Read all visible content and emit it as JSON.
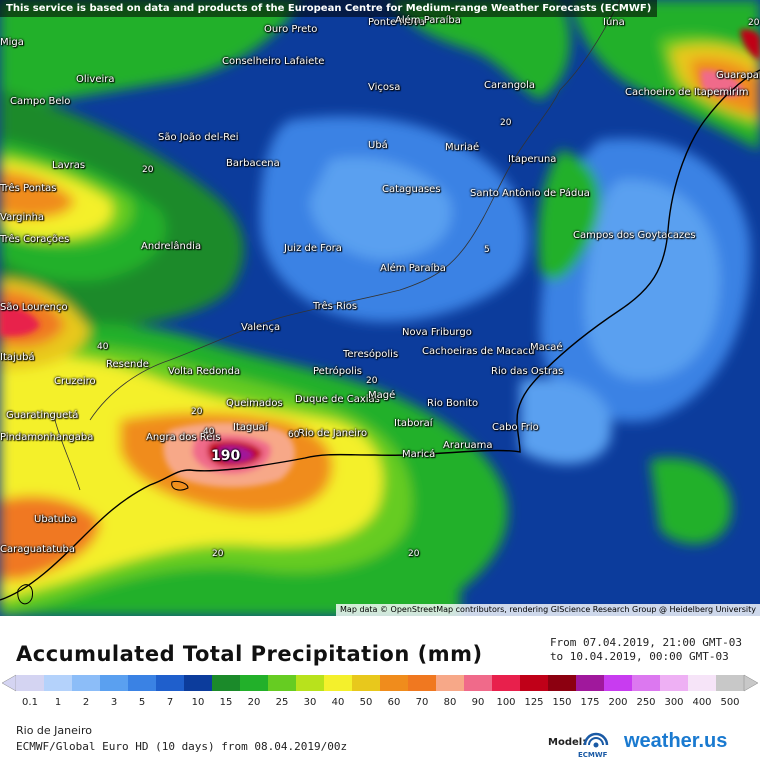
{
  "notice": "This service is based on data and products of the European Centre for Medium-range Weather Forecasts (ECMWF)",
  "attribution": "Map data © OpenStreetMap contributors, rendering GIScience Research Group @ Heidelberg University",
  "title": "Accumulated Total Precipitation (mm)",
  "period": {
    "from": "From 07.04.2019, 21:00 GMT-03",
    "to": "to 10.04.2019, 00:00 GMT-03"
  },
  "location": "Rio de Janeiro",
  "model": "ECMWF/Global Euro HD (10 days) from 08.04.2019/00z",
  "model_label": "Model:",
  "model_logo_text": "ECMWF",
  "brand": "weather.us",
  "max_value_label": "190",
  "contour_labels": [
    "20",
    "20",
    "40",
    "40",
    "20",
    "20",
    "60",
    "20",
    "5",
    "20",
    "20"
  ],
  "scale": [
    {
      "v": "0.1",
      "c": "#d4d4f2"
    },
    {
      "v": "1",
      "c": "#b4d2fb"
    },
    {
      "v": "2",
      "c": "#8cbdf8"
    },
    {
      "v": "3",
      "c": "#5aa0f0"
    },
    {
      "v": "5",
      "c": "#3a82e4"
    },
    {
      "v": "7",
      "c": "#1f5fcc"
    },
    {
      "v": "10",
      "c": "#0c3c9c"
    },
    {
      "v": "15",
      "c": "#1b8a2a"
    },
    {
      "v": "20",
      "c": "#22b02a"
    },
    {
      "v": "25",
      "c": "#66cc22"
    },
    {
      "v": "30",
      "c": "#b8e21c"
    },
    {
      "v": "40",
      "c": "#f4f02c"
    },
    {
      "v": "50",
      "c": "#e8c81c"
    },
    {
      "v": "60",
      "c": "#f08c1c"
    },
    {
      "v": "70",
      "c": "#f07820"
    },
    {
      "v": "80",
      "c": "#f7a888"
    },
    {
      "v": "90",
      "c": "#f06a8a"
    },
    {
      "v": "100",
      "c": "#e8204c"
    },
    {
      "v": "125",
      "c": "#c00018"
    },
    {
      "v": "150",
      "c": "#8c0010"
    },
    {
      "v": "175",
      "c": "#a0189c"
    },
    {
      "v": "200",
      "c": "#c83cf0"
    },
    {
      "v": "250",
      "c": "#dc78f0"
    },
    {
      "v": "300",
      "c": "#eeb0f4"
    },
    {
      "v": "400",
      "c": "#f6e4f8"
    },
    {
      "v": "500",
      "c": "#c8c8c8"
    }
  ],
  "cities": [
    {
      "name": "Ouro Preto"
    },
    {
      "name": "Ponte Nova"
    },
    {
      "name": "Além Paraíba"
    },
    {
      "name": "Iúna"
    },
    {
      "name": "Miga"
    },
    {
      "name": "Oliveira"
    },
    {
      "name": "Conselheiro Lafaiete"
    },
    {
      "name": "Carangola"
    },
    {
      "name": "Cachoeiro de Itapemirim"
    },
    {
      "name": "Guarapari"
    },
    {
      "name": "Campo Belo"
    },
    {
      "name": "Viçosa"
    },
    {
      "name": "São João del-Rei"
    },
    {
      "name": "Ubá"
    },
    {
      "name": "Muriaé"
    },
    {
      "name": "Lavras"
    },
    {
      "name": "Barbacena"
    },
    {
      "name": "Itaperuna"
    },
    {
      "name": "Cataguases"
    },
    {
      "name": "Santo Antônio de Pádua"
    },
    {
      "name": "Campos dos Goytacazes"
    },
    {
      "name": "Três Corações"
    },
    {
      "name": "Andrelândia"
    },
    {
      "name": "Juiz de Fora"
    },
    {
      "name": "Além Paraíba"
    },
    {
      "name": "Três Rios"
    },
    {
      "name": "São Lourenço"
    },
    {
      "name": "Valença"
    },
    {
      "name": "Nova Friburgo"
    },
    {
      "name": "Macaé"
    },
    {
      "name": "Teresópolis"
    },
    {
      "name": "Cachoeiras de Macacu"
    },
    {
      "name": "Resende"
    },
    {
      "name": "Volta Redonda"
    },
    {
      "name": "Petrópolis"
    },
    {
      "name": "Rio das Ostras"
    },
    {
      "name": "Cruzeiro"
    },
    {
      "name": "Queimados"
    },
    {
      "name": "Duque de Caxias"
    },
    {
      "name": "Magé"
    },
    {
      "name": "Rio Bonito"
    },
    {
      "name": "Guaratinguetá"
    },
    {
      "name": "Angra dos Reis"
    },
    {
      "name": "Itaguaí"
    },
    {
      "name": "Rio de Janeiro"
    },
    {
      "name": "Itaboraí"
    },
    {
      "name": "Cabo Frio"
    },
    {
      "name": "Araruama"
    },
    {
      "name": "Maricá"
    },
    {
      "name": "Ubatuba"
    },
    {
      "name": "Caraguatatuba"
    },
    {
      "name": "Pindamonhangaba"
    },
    {
      "name": "Itajubá"
    },
    {
      "name": "Varginha"
    },
    {
      "name": "Três Pontas"
    }
  ]
}
